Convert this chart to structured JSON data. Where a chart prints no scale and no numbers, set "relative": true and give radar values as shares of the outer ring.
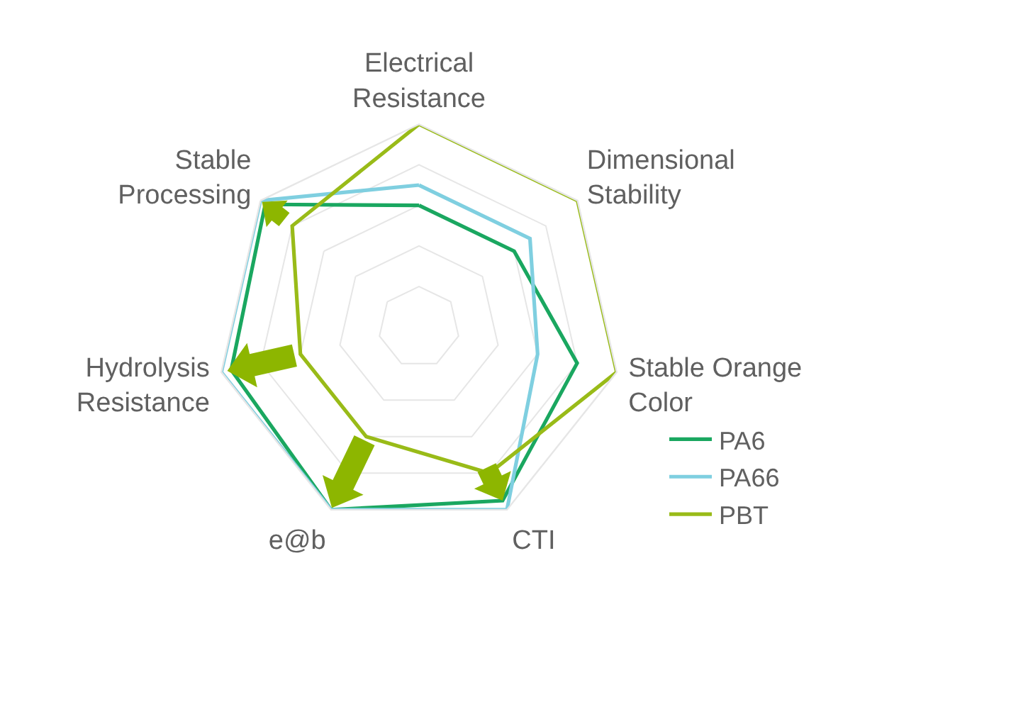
{
  "chart_data": {
    "type": "radar",
    "categories": [
      "Electrical Resistance",
      "Dimensional Stability",
      "Stable Orange Color",
      "CTI",
      "e@b",
      "Hydrolysis Resistance",
      "Stable Processing"
    ],
    "relative": true,
    "grid": true,
    "legend": "bottom right",
    "series": [
      {
        "name": "PA6",
        "color": "#1aa760",
        "values": [
          0.6,
          0.6,
          0.8,
          0.95,
          1,
          0.95,
          0.97
        ]
      },
      {
        "name": "PA66",
        "color": "#7fcfe0",
        "values": [
          0.7,
          0.7,
          0.6,
          1,
          1,
          1,
          1
        ]
      },
      {
        "name": "PBT",
        "color": "#99bb18",
        "values": [
          1,
          1,
          1,
          0.8,
          0.6,
          0.6,
          0.8
        ]
      }
    ]
  }
}
